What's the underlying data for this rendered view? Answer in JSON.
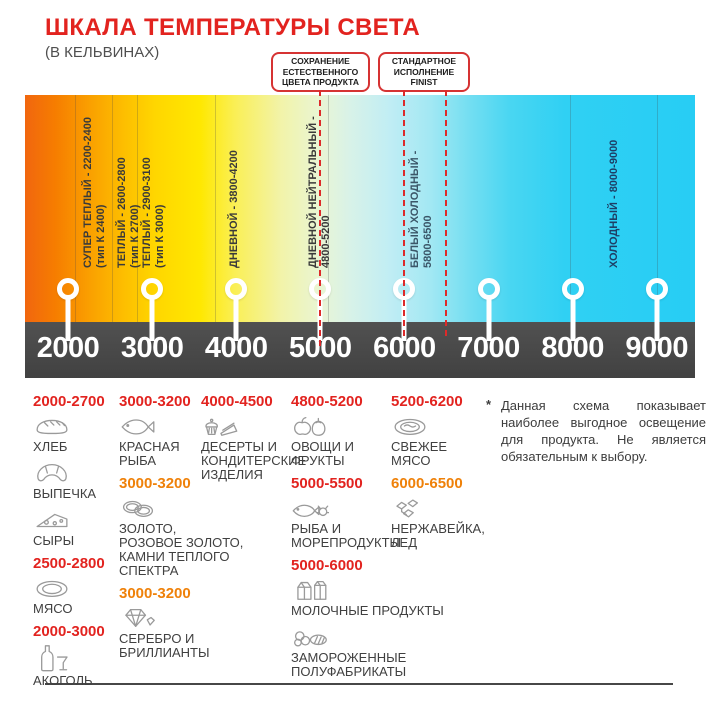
{
  "title": "ШКАЛА ТЕМПЕРАТУРЫ СВЕТА",
  "subtitle": "(В КЕЛЬВИНАХ)",
  "colors": {
    "red": "#e2231f",
    "orange": "#ef8109",
    "scale_bar": "#4a4a4a",
    "guide_red": "#dd2a2a"
  },
  "callouts": [
    {
      "text": "СОХРАНЕНИЕ\nЕСТЕСТВЕННОГО\nЦВЕТА ПРОДУКТА",
      "guides_kelvin": [
        5000
      ]
    },
    {
      "text": "СТАНДАРТНОЕ\nИСПОЛНЕНИЕ\nFINIST",
      "guides_kelvin": [
        6000,
        6500
      ]
    }
  ],
  "scale": {
    "unit": "K",
    "ticks": [
      2000,
      3000,
      4000,
      5000,
      6000,
      7000,
      8000,
      9000
    ],
    "zones": [
      {
        "line1": "СУПЕР ТЕПЛЫЙ - 2200-2400",
        "line2": "(тип К 2400)",
        "kelvin": 2170,
        "color": "#3a3a3a"
      },
      {
        "line1": "ТЕПЛЫЙ - 2600-2800",
        "line2": "(тип К 2700)",
        "kelvin": 2570,
        "color": "#3a3a3a"
      },
      {
        "line1": "ТЕПЛЫЙ - 2900-3100",
        "line2": "(тип К 3000)",
        "kelvin": 2870,
        "color": "#3a3a3a"
      },
      {
        "line1": "ДНЕВНОЙ - 3800-4200",
        "line2": "",
        "kelvin": 3900,
        "color": "#3a3a3a"
      },
      {
        "line1": "ДНЕВНОЙ НЕЙТРАЛЬНЫЙ -",
        "line2": "4800-5200",
        "kelvin": 4840,
        "color": "#3a3a3a"
      },
      {
        "line1": "БЕЛЫЙ ХОЛОДНЫЙ -",
        "line2": "5800-6500",
        "kelvin": 6060,
        "color": "#3b5668"
      },
      {
        "line1": "ХОЛОДНЫЙ - 8000-9000",
        "line2": "",
        "kelvin": 8420,
        "color": "#1e3f66"
      }
    ]
  },
  "columns": [
    {
      "groups": [
        {
          "range": "2000-2700",
          "tone": "red",
          "entries": [
            {
              "icon": "bread",
              "label": "ХЛЕБ"
            },
            {
              "icon": "croissant",
              "label": "ВЫПЕЧКА"
            },
            {
              "icon": "cheese",
              "label": "СЫРЫ"
            }
          ]
        },
        {
          "range": "2500-2800",
          "tone": "red",
          "entries": [
            {
              "icon": "meat",
              "label": "МЯСО"
            }
          ]
        },
        {
          "range": "2000-3000",
          "tone": "red",
          "entries": [
            {
              "icon": "alcohol",
              "label": "АКОГОЛЬ"
            }
          ]
        }
      ]
    },
    {
      "groups": [
        {
          "range": "3000-3200",
          "tone": "red",
          "entries": [
            {
              "icon": "fish",
              "label": "КРАСНАЯ\nРЫБА"
            }
          ]
        },
        {
          "range": "3000-3200",
          "tone": "orange",
          "entries": [
            {
              "icon": "rings",
              "label": "ЗОЛОТО,\nРОЗОВОЕ ЗОЛОТО,\nКАМНИ ТЕПЛОГО\nСПЕКТРА"
            }
          ]
        },
        {
          "range": "3000-3200",
          "tone": "orange",
          "entries": [
            {
              "icon": "diamond",
              "label": "СЕРЕБРО И\nБРИЛЛИАНТЫ"
            }
          ]
        }
      ]
    },
    {
      "groups": [
        {
          "range": "4000-4500",
          "tone": "red",
          "entries": [
            {
              "icon": "desserts",
              "label": "ДЕСЕРТЫ И\nКОНДИТЕРСКИЕ\nИЗДЕЛИЯ"
            }
          ]
        }
      ]
    },
    {
      "groups": [
        {
          "range": "4800-5200",
          "tone": "red",
          "entries": [
            {
              "icon": "fruits",
              "label": "ОВОЩИ И\nФРУКТЫ"
            }
          ]
        },
        {
          "range": "5000-5500",
          "tone": "red",
          "entries": [
            {
              "icon": "seafood",
              "label": "РЫБА И\nМОРЕПРОДУКТЫ"
            }
          ]
        },
        {
          "range": "5000-6000",
          "tone": "red",
          "entries": [
            {
              "icon": "milk",
              "label": "МОЛОЧНЫЕ ПРОДУКТЫ"
            },
            {
              "icon": "frozen",
              "label": "ЗАМОРОЖЕННЫЕ\nПОЛУФАБРИКАТЫ"
            }
          ]
        }
      ]
    },
    {
      "groups": [
        {
          "range": "5200-6200",
          "tone": "red",
          "entries": [
            {
              "icon": "fresh-meat",
              "label": "СВЕЖЕЕ\nМЯСО"
            }
          ]
        },
        {
          "range": "6000-6500",
          "tone": "orange",
          "entries": [
            {
              "icon": "ice",
              "label": "НЕРЖАВЕЙКА,\nЛЕД"
            }
          ]
        }
      ]
    }
  ],
  "footnote": {
    "marker": "*",
    "text": "Данная схема показывает наиболее выгодное освещение для продукта. Не является обязательным к выбору."
  }
}
